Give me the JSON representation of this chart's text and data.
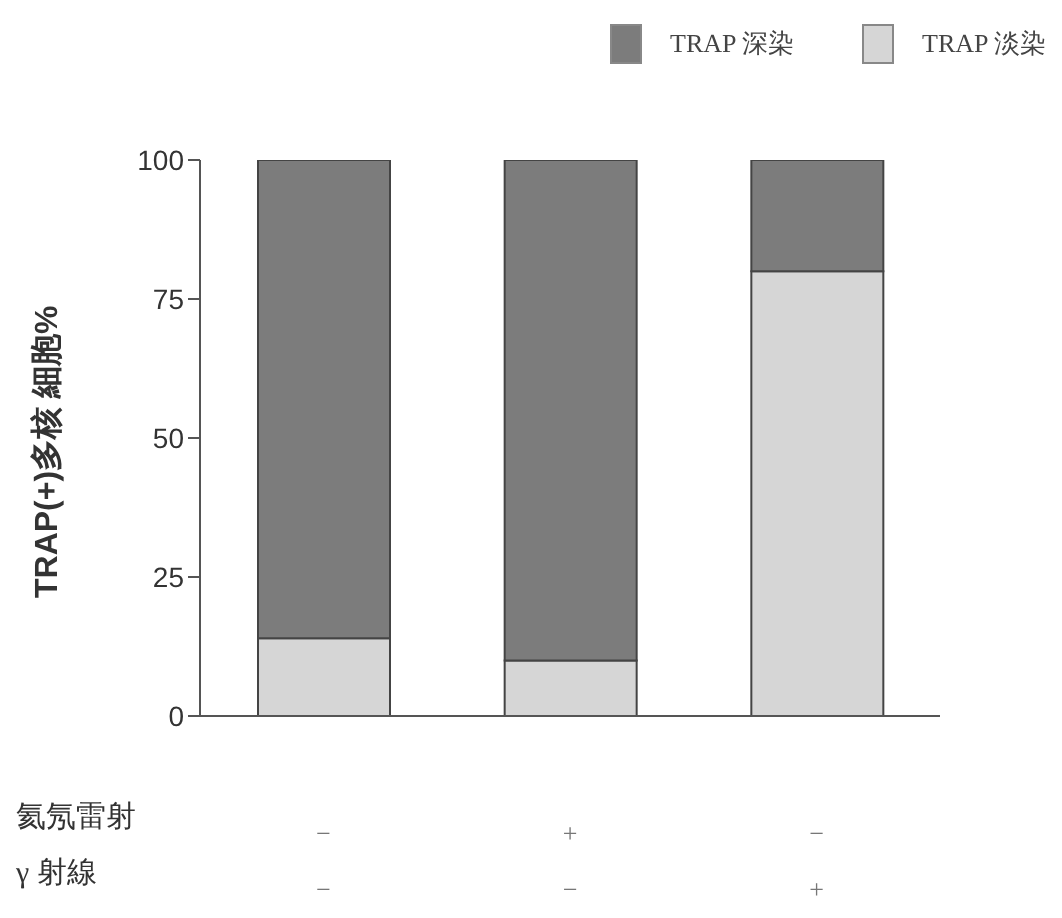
{
  "chart_data": {
    "type": "bar",
    "stacked": true,
    "ylabel": "TRAP(+)多核 細胞%",
    "categories": [
      "−\n−",
      "+\n−",
      "−\n+"
    ],
    "series": [
      {
        "name": "TRAP 淡染",
        "color": "#d6d6d6",
        "values": [
          14,
          10,
          80
        ]
      },
      {
        "name": "TRAP 深染",
        "color": "#7c7c7c",
        "values": [
          86,
          90,
          20
        ]
      }
    ],
    "ylim": [
      0,
      100
    ],
    "yticks": [
      0,
      25,
      50,
      75,
      100
    ],
    "legend": "top right",
    "annotations": [
      "氦氖雷射",
      "γ 射線"
    ]
  }
}
